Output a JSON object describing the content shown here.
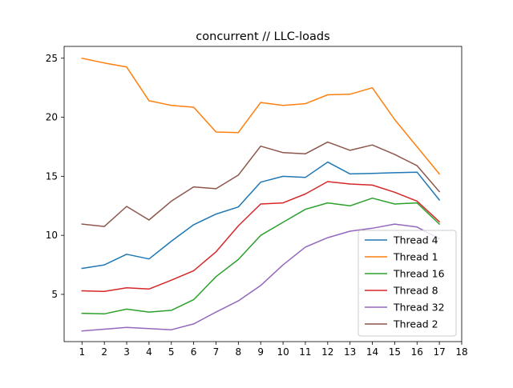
{
  "chart_data": {
    "type": "line",
    "title": "concurrent // LLC-loads",
    "xlabel": "",
    "ylabel": "",
    "x": [
      1,
      2,
      3,
      4,
      5,
      6,
      7,
      8,
      9,
      10,
      11,
      12,
      13,
      14,
      15,
      16,
      17
    ],
    "xticks": [
      "1",
      "2",
      "3",
      "4",
      "5",
      "6",
      "7",
      "8",
      "9",
      "10",
      "11",
      "12",
      "13",
      "14",
      "15",
      "16",
      "17",
      "18"
    ],
    "yticks": [
      "5",
      "10",
      "15",
      "20",
      "25"
    ],
    "xlim": [
      0.2,
      18
    ],
    "ylim": [
      1,
      26
    ],
    "grid": false,
    "legend_position": "lower right",
    "series": [
      {
        "name": "Thread 4",
        "color": "#1f77b4",
        "values": [
          7.2,
          7.5,
          8.4,
          8.0,
          9.5,
          10.9,
          11.8,
          12.4,
          14.5,
          15.0,
          14.9,
          16.2,
          15.2,
          15.25,
          15.3,
          15.35,
          13.0
        ]
      },
      {
        "name": "Thread 1",
        "color": "#ff7f0e",
        "values": [
          25.0,
          24.6,
          24.25,
          21.4,
          21.0,
          20.85,
          18.75,
          18.7,
          21.25,
          21.0,
          21.15,
          21.9,
          21.95,
          22.5,
          19.8,
          17.5,
          15.2
        ]
      },
      {
        "name": "Thread 16",
        "color": "#2ca02c",
        "values": [
          3.4,
          3.35,
          3.75,
          3.5,
          3.65,
          4.55,
          6.5,
          7.95,
          10.0,
          11.1,
          12.2,
          12.75,
          12.5,
          13.15,
          12.65,
          12.75,
          10.95
        ]
      },
      {
        "name": "Thread 8",
        "color": "#d62728",
        "values": [
          5.3,
          5.25,
          5.55,
          5.45,
          6.2,
          7.0,
          8.6,
          10.8,
          12.65,
          12.75,
          13.5,
          14.55,
          14.35,
          14.25,
          13.65,
          12.9,
          11.15
        ]
      },
      {
        "name": "Thread 32",
        "color": "#9467bd",
        "values": [
          1.9,
          2.05,
          2.2,
          2.1,
          2.0,
          2.5,
          3.5,
          4.45,
          5.75,
          7.5,
          9.0,
          9.8,
          10.35,
          10.6,
          10.95,
          10.7,
          9.7
        ]
      },
      {
        "name": "Thread 2",
        "color": "#8c564b",
        "values": [
          10.95,
          10.75,
          12.45,
          11.3,
          12.9,
          14.1,
          13.95,
          15.1,
          17.55,
          17.0,
          16.9,
          17.9,
          17.2,
          17.65,
          16.85,
          15.9,
          13.7
        ]
      }
    ]
  }
}
